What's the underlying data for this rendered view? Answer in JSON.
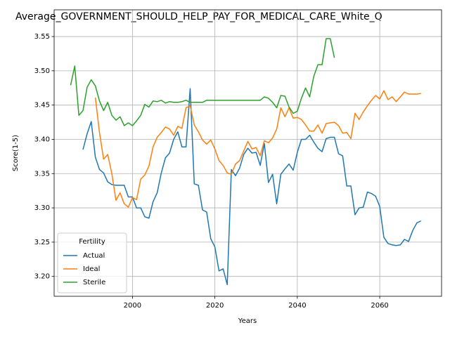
{
  "chart_data": {
    "type": "line",
    "title": "Average_GOVERNMENT_SHOULD_HELP_PAY_FOR_MEDICAL_CARE_White_Q",
    "x_label": "Years",
    "y_label": "Score(1-5)",
    "x": [
      1985,
      1986,
      1987,
      1988,
      1989,
      1990,
      1991,
      1992,
      1993,
      1994,
      1995,
      1996,
      1997,
      1998,
      1999,
      2000,
      2001,
      2002,
      2003,
      2004,
      2005,
      2006,
      2007,
      2008,
      2009,
      2010,
      2011,
      2012,
      2013,
      2014,
      2015,
      2016,
      2017,
      2018,
      2019,
      2020,
      2021,
      2022,
      2023,
      2024,
      2025,
      2026,
      2027,
      2028,
      2029,
      2030,
      2031,
      2032,
      2033,
      2034,
      2035,
      2036,
      2037,
      2038,
      2039,
      2040,
      2041,
      2042,
      2043,
      2044,
      2045,
      2046,
      2047,
      2048,
      2049,
      2050,
      2051,
      2052,
      2053,
      2054,
      2055,
      2056,
      2057,
      2058,
      2059,
      2060,
      2061,
      2062,
      2063,
      2064,
      2065,
      2066,
      2067,
      2068,
      2069,
      2070
    ],
    "series": [
      {
        "name": "Actual",
        "color": "#1f77b4",
        "values": [
          null,
          null,
          null,
          3.385,
          3.408,
          3.426,
          3.374,
          3.356,
          3.351,
          3.338,
          3.334,
          3.333,
          3.333,
          3.333,
          3.316,
          3.316,
          3.3,
          3.3,
          3.287,
          3.285,
          3.309,
          3.322,
          3.351,
          3.373,
          3.38,
          3.4,
          3.411,
          3.389,
          3.389,
          3.474,
          3.335,
          3.333,
          3.297,
          3.294,
          3.255,
          3.243,
          3.208,
          3.211,
          3.188,
          3.356,
          3.347,
          3.358,
          3.378,
          3.387,
          3.38,
          3.381,
          3.362,
          3.394,
          3.337,
          3.349,
          3.306,
          3.349,
          3.357,
          3.364,
          3.355,
          3.381,
          3.4,
          3.4,
          3.406,
          3.396,
          3.387,
          3.382,
          3.401,
          3.403,
          3.403,
          3.379,
          3.376,
          3.332,
          3.332,
          3.29,
          3.3,
          3.301,
          3.323,
          3.321,
          3.317,
          3.302,
          3.257,
          3.248,
          3.246,
          3.245,
          3.246,
          3.254,
          3.251,
          3.267,
          3.278,
          3.281
        ]
      },
      {
        "name": "Ideal",
        "color": "#ff7f0e",
        "values": [
          null,
          null,
          null,
          null,
          null,
          null,
          3.461,
          3.41,
          3.371,
          3.378,
          3.35,
          3.311,
          3.322,
          3.306,
          3.301,
          3.315,
          3.312,
          3.342,
          3.348,
          3.361,
          3.389,
          3.403,
          3.41,
          3.418,
          3.415,
          3.406,
          3.419,
          3.416,
          3.446,
          3.449,
          3.421,
          3.411,
          3.399,
          3.393,
          3.399,
          3.386,
          3.369,
          3.362,
          3.351,
          3.349,
          3.364,
          3.369,
          3.383,
          3.397,
          3.386,
          3.388,
          3.376,
          3.398,
          3.395,
          3.402,
          3.415,
          3.446,
          3.433,
          3.446,
          3.431,
          3.432,
          3.429,
          3.421,
          3.412,
          3.412,
          3.421,
          3.409,
          3.423,
          3.424,
          3.425,
          3.42,
          3.409,
          3.41,
          3.401,
          3.438,
          3.429,
          3.44,
          3.449,
          3.457,
          3.464,
          3.459,
          3.471,
          3.458,
          3.462,
          3.455,
          3.462,
          3.469,
          3.466,
          3.466,
          3.466,
          3.467
        ]
      },
      {
        "name": "Sterile",
        "color": "#2ca02c",
        "values": [
          3.479,
          3.507,
          3.435,
          3.442,
          3.476,
          3.487,
          3.478,
          3.456,
          3.442,
          3.454,
          3.435,
          3.428,
          3.433,
          3.42,
          3.424,
          3.42,
          3.427,
          3.435,
          3.451,
          3.447,
          3.456,
          3.455,
          3.457,
          3.453,
          3.455,
          3.454,
          3.454,
          3.455,
          3.457,
          3.454,
          3.454,
          3.454,
          3.454,
          3.457,
          3.457,
          3.457,
          3.457,
          3.457,
          3.457,
          3.457,
          3.457,
          3.457,
          3.457,
          3.457,
          3.457,
          3.457,
          3.457,
          3.462,
          3.46,
          3.454,
          3.446,
          3.464,
          3.463,
          3.447,
          3.438,
          3.441,
          3.46,
          3.475,
          3.462,
          3.492,
          3.509,
          3.509,
          3.547,
          3.547,
          3.519,
          null,
          null,
          null,
          null,
          null,
          null,
          null,
          null,
          null,
          null,
          null,
          null,
          null,
          null,
          null,
          null,
          null,
          null,
          null,
          null,
          null
        ]
      }
    ],
    "legend_title": "Fertility",
    "legend": "lower left",
    "grid": true,
    "xlim": [
      1981,
      2075
    ],
    "xticks": [
      2000,
      2020,
      2040,
      2060
    ],
    "ylim": [
      3.171,
      3.589
    ],
    "yticks": [
      {
        "value": 3.2,
        "label": "3.20"
      },
      3.25,
      {
        "value": 3.3,
        "label": "3.30"
      },
      3.35,
      {
        "value": 3.4,
        "label": "3.40"
      },
      3.45,
      {
        "value": 3.5,
        "label": "3.50"
      },
      3.55
    ]
  }
}
